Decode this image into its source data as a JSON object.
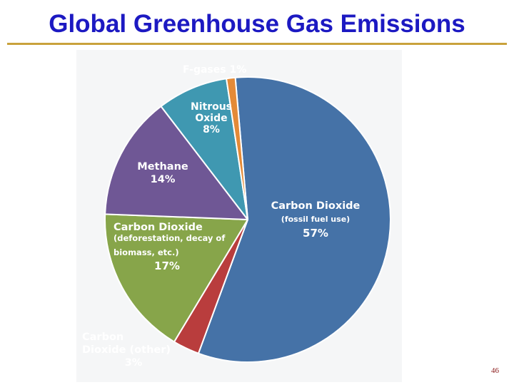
{
  "slide": {
    "title": "Global Greenhouse Gas Emissions",
    "page_number": "46"
  },
  "chart_data": {
    "type": "pie",
    "title": "",
    "slices": [
      {
        "label": "Carbon Dioxide",
        "sublabel": "(fossil fuel use)",
        "value": 57,
        "value_label": "57%",
        "color": "#4572a7"
      },
      {
        "label": "Carbon Dioxide (other)",
        "sublabel": "",
        "value": 3,
        "value_label": "3%",
        "color": "#b93d3d"
      },
      {
        "label": "Carbon Dioxide",
        "sublabel": "(deforestation, decay of biomass, etc.)",
        "value": 17,
        "value_label": "17%",
        "color": "#87a54a"
      },
      {
        "label": "Methane",
        "sublabel": "",
        "value": 14,
        "value_label": "14%",
        "color": "#6f5795"
      },
      {
        "label": "Nitrous Oxide",
        "sublabel": "",
        "value": 8,
        "value_label": "8%",
        "color": "#3f98b1"
      },
      {
        "label": "F-gases",
        "sublabel": "",
        "value": 1,
        "value_label": "1%",
        "color": "#e48a37"
      }
    ],
    "label_lines": [
      [
        "Carbon Dioxide",
        "(fossil fuel use)",
        "57%"
      ],
      [
        "Carbon",
        "Dioxide (other)",
        "3%"
      ],
      [
        "Carbon Dioxide",
        "(deforestation, decay of",
        "biomass, etc.)",
        "17%"
      ],
      [
        "Methane",
        "14%"
      ],
      [
        "Nitrous",
        "Oxide",
        "8%"
      ],
      [
        "F-gases 1%"
      ]
    ],
    "colors": {
      "outside_label": "#3d5f8a",
      "inside_label": "#ffffff",
      "slice_border": "#ffffff"
    }
  }
}
